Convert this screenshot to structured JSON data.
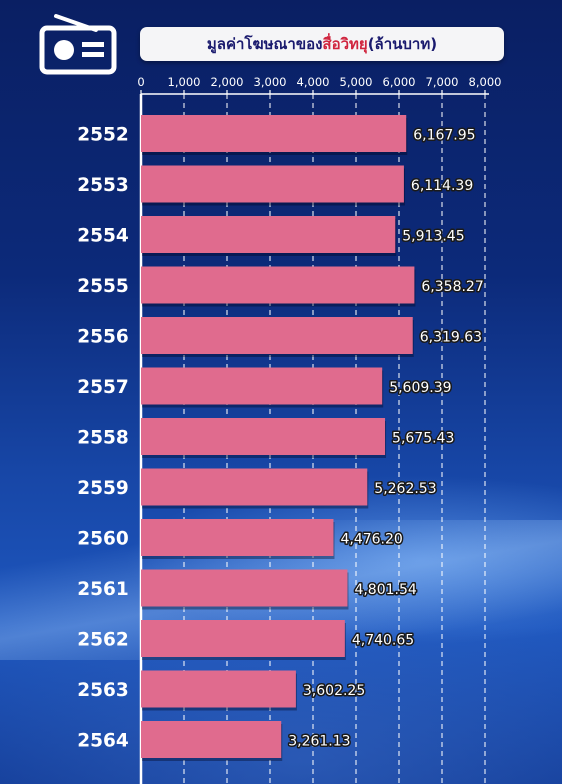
{
  "title": {
    "prefix": "มูลค่าโฆษณาของ",
    "highlight": "สื่อวิทยุ",
    "suffix": " (ล้านบาท)"
  },
  "colors": {
    "bar": "#e06b8e",
    "highlight_text": "#d0243e",
    "title_text": "#1a1a6e",
    "axis": "#ffffff"
  },
  "icon": "radio-icon",
  "chart_data": {
    "type": "bar",
    "orientation": "horizontal",
    "categories": [
      "2552",
      "2553",
      "2554",
      "2555",
      "2556",
      "2557",
      "2558",
      "2559",
      "2560",
      "2561",
      "2562",
      "2563",
      "2564"
    ],
    "values": [
      6167.95,
      6114.39,
      5913.45,
      6358.27,
      6319.63,
      5609.39,
      5675.43,
      5262.53,
      4476.2,
      4801.54,
      4740.65,
      3602.25,
      3261.13
    ],
    "value_labels": [
      "6,167.95",
      "6,114.39",
      "5,913.45",
      "6,358.27",
      "6,319.63",
      "5,609.39",
      "5,675.43",
      "5,262.53",
      "4,476.20",
      "4,801.54",
      "4,740.65",
      "3,602.25",
      "3,261.13"
    ],
    "xticks": [
      0,
      1000,
      2000,
      3000,
      4000,
      5000,
      6000,
      7000,
      8000
    ],
    "xtick_labels": [
      "0",
      "1,000",
      "2,000",
      "3,000",
      "4,000",
      "5,000",
      "6,000",
      "7,000",
      "8,000"
    ],
    "xlim": [
      0,
      8000
    ],
    "grid": true,
    "axis_position": "top",
    "title": "มูลค่าโฆษณาของสื่อวิทยุ (ล้านบาท)"
  }
}
